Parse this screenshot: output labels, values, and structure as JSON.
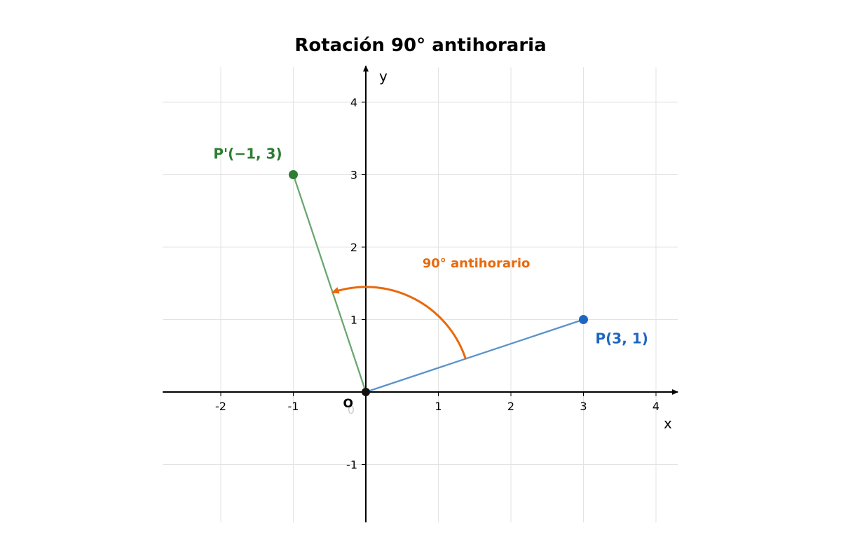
{
  "chart_data": {
    "type": "scatter",
    "title": "Rotación 90° antihoraria",
    "xlabel": "x",
    "ylabel": "y",
    "xlim": [
      -2.8,
      4.3
    ],
    "ylim": [
      -1.8,
      4.5
    ],
    "x_ticks": [
      -2,
      -1,
      1,
      2,
      3,
      4
    ],
    "y_ticks": [
      -1,
      1,
      2,
      3,
      4
    ],
    "origin_tick_label": "0",
    "grid": true,
    "origin": {
      "x": 0,
      "y": 0,
      "label": "O",
      "color": "#111111"
    },
    "points": [
      {
        "name": "P",
        "x": 3,
        "y": 1,
        "label": "P(3, 1)",
        "color": "#1f66c2",
        "segment_color": "#5b93cc"
      },
      {
        "name": "P'",
        "x": -1,
        "y": 3,
        "label": "P'(−1, 3)",
        "color": "#2e7d32",
        "segment_color": "#6aa66f"
      }
    ],
    "rotation_arc": {
      "label": "90° antihorario",
      "color": "#e8690b",
      "radius": 1.45,
      "start_point": [
        3,
        1
      ],
      "end_point": [
        -1,
        3
      ]
    },
    "grid_color": "#e3e3e3",
    "axis_color": "#000000"
  }
}
